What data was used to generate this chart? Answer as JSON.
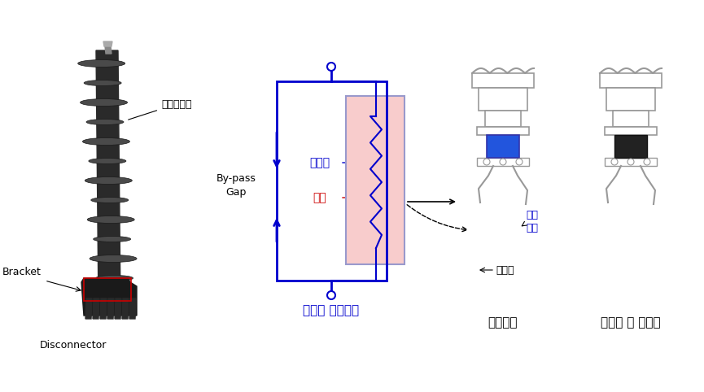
{
  "bg_color": "#ffffff",
  "label_polymer": "폴리머애자",
  "label_bracket": "Bracket",
  "label_disconnector": "Disconnector",
  "label_bypass_gap": "By-pass\nGap",
  "label_resistance": "저항선",
  "label_explosive": "폭약",
  "label_danro_jangchi": "단로\n장치",
  "label_jeongji_seon": "접지선",
  "label_internal": "단로기 내부구조",
  "label_normal": "정상상태",
  "label_after": "단로장 치 폭발후",
  "blue_color": "#0000CD",
  "red_color": "#CC0000",
  "lgray": "#AAAAAA"
}
